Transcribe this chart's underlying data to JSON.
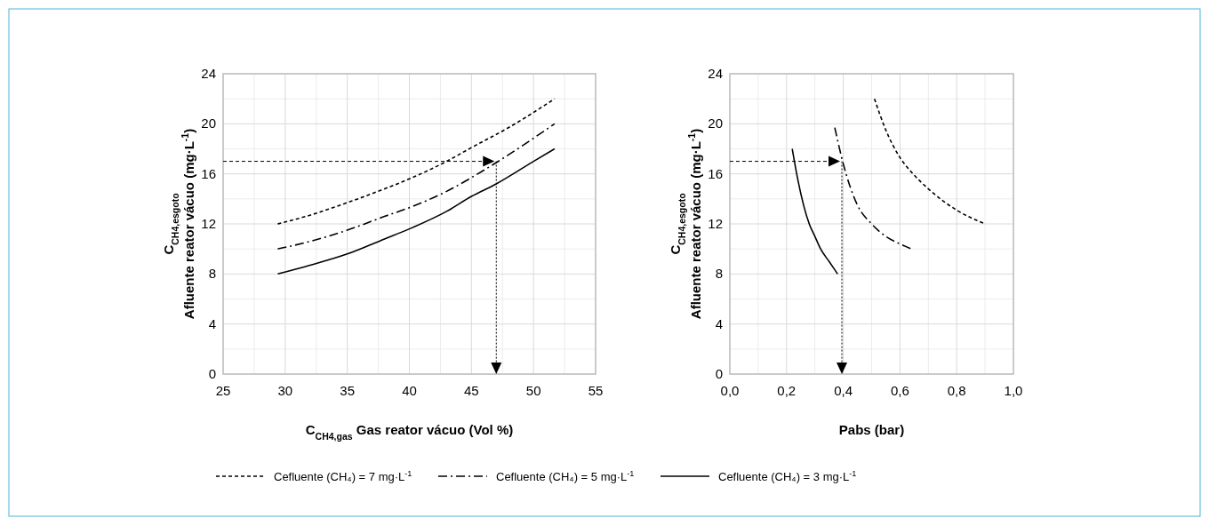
{
  "chart_data": [
    {
      "type": "line",
      "xlabel": "C$_{CH4,gas}$ Gas reator vácuo  (Vol %)",
      "ylabel": "C$_{CH4,esgoto}$\nAfluente reator vácuo (mg·L$^{-1}$)",
      "xlim": [
        25,
        55
      ],
      "xticks": [
        25,
        30,
        35,
        40,
        45,
        50,
        55
      ],
      "ylim": [
        0,
        24
      ],
      "yticks": [
        0,
        4,
        8,
        12,
        16,
        20,
        24
      ],
      "grid": true,
      "legend": "bottom",
      "marker": "none",
      "ref_lines": [
        {
          "axis": "y",
          "value": 17,
          "line_style": "dashed",
          "color": "#000000"
        },
        {
          "axis": "x",
          "value": 47,
          "line_style": "dotted",
          "color": "#000000"
        }
      ],
      "series": [
        {
          "name": "Cefluente (CH₄) = 7 mg·L$^{-1}$",
          "color": "#000000",
          "line_style": "dashed",
          "x": [
            29.4,
            32,
            35,
            38,
            40,
            43,
            45,
            48,
            51.7
          ],
          "values": [
            12,
            12.7,
            13.7,
            14.8,
            15.6,
            17,
            18.1,
            19.7,
            22
          ]
        },
        {
          "name": "Cefluente (CH₄) = 5 mg·L$^{-1}$",
          "color": "#000000",
          "line_style": "dashdot",
          "x": [
            29.4,
            32,
            35,
            38,
            40,
            43,
            45,
            47,
            51.7
          ],
          "values": [
            10,
            10.6,
            11.5,
            12.6,
            13.3,
            14.6,
            15.7,
            16.9,
            20
          ]
        },
        {
          "name": "Cefluente (CH₄) = 3 mg·L$^{-1}$",
          "color": "#000000",
          "line_style": "solid",
          "x": [
            29.4,
            32,
            35,
            38,
            40,
            43,
            45,
            47,
            50,
            51.7
          ],
          "values": [
            8,
            8.7,
            9.6,
            10.8,
            11.6,
            13,
            14.2,
            15.2,
            17,
            18
          ]
        }
      ]
    },
    {
      "type": "line",
      "xlabel": "Pabs (bar)",
      "ylabel": "C$_{CH4,esgoto}$\nAfluente reator vácuo (mg·L$^{-1}$)",
      "xlim": [
        0,
        1
      ],
      "xticks": [
        {
          "value": 0,
          "label": "0,0"
        },
        {
          "value": 0.2,
          "label": "0,2"
        },
        {
          "value": 0.4,
          "label": "0,4"
        },
        {
          "value": 0.6,
          "label": "0,6"
        },
        {
          "value": 0.8,
          "label": "0,8"
        },
        {
          "value": 1,
          "label": "1,0"
        }
      ],
      "ylim": [
        0,
        24
      ],
      "yticks": [
        0,
        4,
        8,
        12,
        16,
        20,
        24
      ],
      "grid": true,
      "marker": "none",
      "ref_lines": [
        {
          "axis": "y",
          "value": 17,
          "line_style": "dashed",
          "color": "#000000"
        },
        {
          "axis": "x",
          "value": 0.395,
          "line_style": "dotted",
          "color": "#000000"
        }
      ],
      "series": [
        {
          "color": "#000000",
          "line_style": "dashed",
          "x": [
            0.51,
            0.55,
            0.6,
            0.65,
            0.7,
            0.8,
            0.9
          ],
          "values": [
            22,
            19.5,
            17.3,
            15.9,
            14.8,
            13.1,
            12
          ]
        },
        {
          "color": "#000000",
          "line_style": "dashdot",
          "x": [
            0.37,
            0.4,
            0.45,
            0.5,
            0.55,
            0.6,
            0.64
          ],
          "values": [
            19.7,
            16.8,
            13.5,
            12,
            11,
            10.4,
            10
          ]
        },
        {
          "color": "#000000",
          "line_style": "solid",
          "x": [
            0.22,
            0.24,
            0.26,
            0.28,
            0.3,
            0.32,
            0.35,
            0.38
          ],
          "values": [
            18,
            15.5,
            13.5,
            12,
            11,
            10,
            9,
            8
          ]
        }
      ]
    }
  ]
}
